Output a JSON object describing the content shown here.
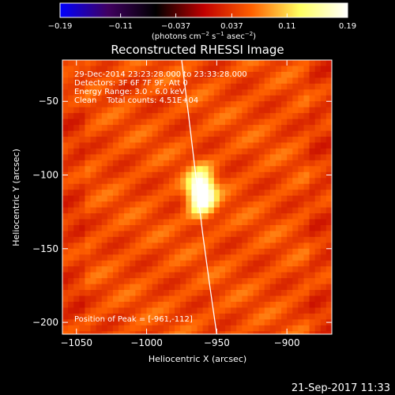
{
  "chart_data": {
    "type": "heatmap",
    "title": "Reconstructed RHESSI Image",
    "xlabel": "Heliocentric X (arcsec)",
    "ylabel": "Heliocentric Y (arcsec)",
    "xlim": [
      -1060,
      -868
    ],
    "ylim": [
      -208,
      -22
    ],
    "x_ticks": [
      -1050,
      -1000,
      -950,
      -900
    ],
    "x_tick_labels": [
      "−1050",
      "−1000",
      "−950",
      "−900"
    ],
    "y_ticks": [
      -50,
      -100,
      -150,
      -200
    ],
    "y_tick_labels": [
      "−50",
      "−100",
      "−150",
      "−200"
    ],
    "colorbar": {
      "range": [
        -0.19,
        0.19
      ],
      "ticks": [
        -0.19,
        -0.11,
        -0.037,
        0.037,
        0.11,
        0.19
      ],
      "tick_labels": [
        "−0.19",
        "−0.11",
        "−0.037",
        "0.037",
        "0.11",
        "0.19"
      ],
      "units_label_parts": [
        "(photons cm",
        "−2",
        " s",
        "−1",
        " asec",
        "−2",
        ")"
      ],
      "colors": [
        "#0000ff",
        "#400060",
        "#000000",
        "#c00000",
        "#ff6000",
        "#ffff60",
        "#ffffff"
      ]
    },
    "annotations": [
      "29-Dec-2014 23:23:28.000 to 23:33:28.000",
      "Detectors: 3F 6F 7F 9F, Att 0",
      "Energy Range: 3.0 - 6.0 keV",
      "Clean    Total counts: 4.51E+04",
      "Position of Peak = [-961,-112]"
    ],
    "peak_position": [
      -961,
      -112
    ],
    "limb_line": [
      [
        -975,
        -22
      ],
      [
        -970,
        -60
      ],
      [
        -965,
        -100
      ],
      [
        -960,
        -140
      ],
      [
        -955,
        -175
      ],
      [
        -950,
        -208
      ]
    ],
    "grid": false
  },
  "footer": {
    "timestamp": "21-Sep-2017 11:33"
  }
}
